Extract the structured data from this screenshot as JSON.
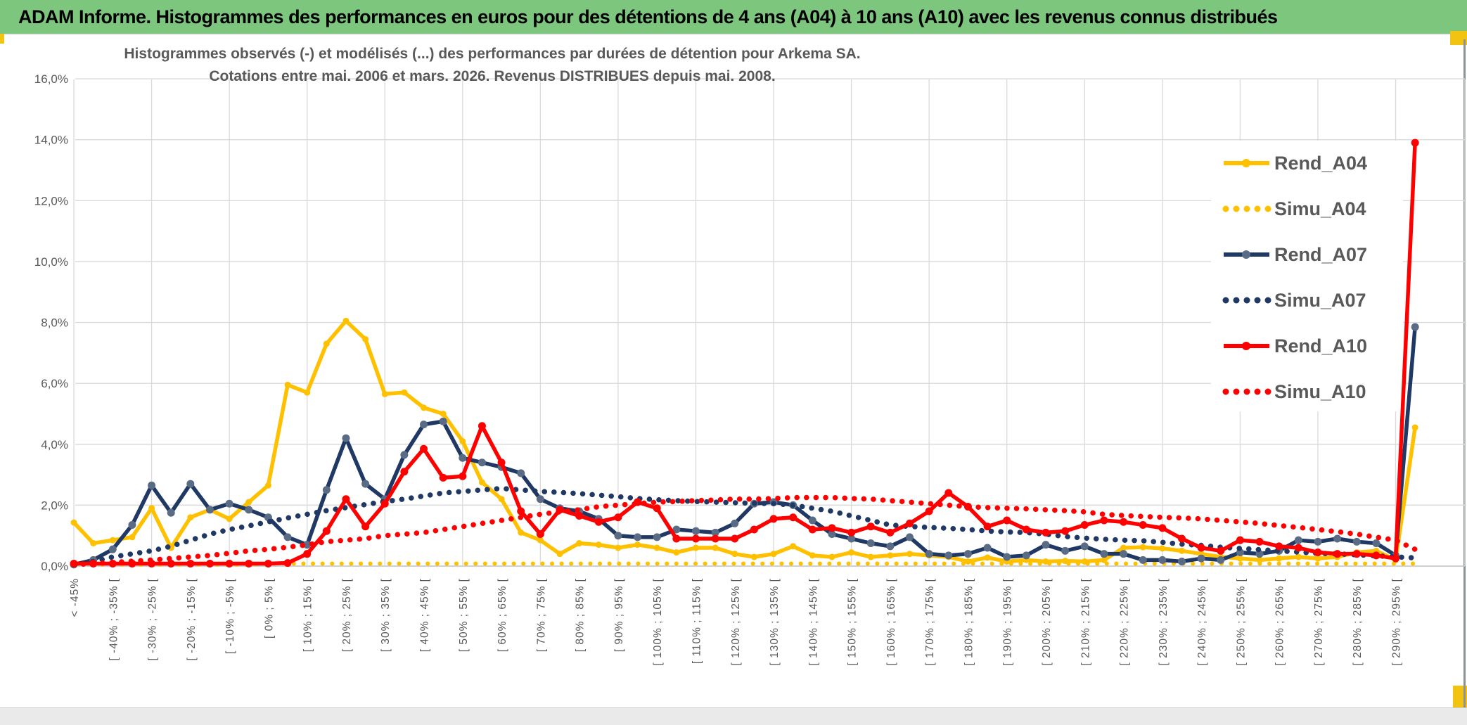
{
  "banner": {
    "title": "ADAM Informe. Histogrammes des performances en euros pour des détentions de 4 ans (A04) à 10 ans (A10) avec les revenus connus distribués"
  },
  "colors": {
    "banner_green": "#7cc67e",
    "accent_yellow": "#f2c411",
    "text_gray": "#595959",
    "gridline": "#dadada",
    "axis_line": "#c0c0c0",
    "series_yellow": "#ffc000",
    "series_navy": "#1f3864",
    "navy_marker": "#5a6b85",
    "series_red": "#ff0000",
    "window_border": "#8c9196",
    "bottom_strip": "#eaeaea"
  },
  "chart_data": {
    "type": "line",
    "title_line1": "Histogrammes observés (-) et modélisés (...) des performances par durées de détention pour Arkema SA.",
    "title_line2": "Cotations entre mai. 2006 et mars. 2026. Revenus DISTRIBUES depuis mai. 2008.",
    "ylim": [
      0,
      16
    ],
    "ytick_step": 2,
    "ytick_labels": [
      "0,0%",
      "2,0%",
      "4,0%",
      "6,0%",
      "8,0%",
      "10,0%",
      "12,0%",
      "14,0%",
      "16,0%"
    ],
    "grid": true,
    "legend_position": "right-top",
    "categories": [
      "< -45%",
      "",
      "[ -40% ; -35% [",
      "",
      "[ -30% ; -25% [",
      "",
      "[ -20% ; -15% [",
      "",
      "[ -10% ; -5% [",
      "",
      "[ 0% ; 5% [",
      "",
      "[ 10% ; 15% [",
      "",
      "[ 20% ; 25% [",
      "",
      "[ 30% ; 35% [",
      "",
      "[ 40% ; 45% [",
      "",
      "[ 50% ; 55% [",
      "",
      "[ 60% ; 65% [",
      "",
      "[ 70% ; 75% [",
      "",
      "[ 80% ; 85% [",
      "",
      "[ 90% ; 95% [",
      "",
      "[ 100% ; 105% [",
      "",
      "[ 110% ; 115% [",
      "",
      "[ 120% ; 125% [",
      "",
      "[ 130% ; 135% [",
      "",
      "[ 140% ; 145% [",
      "",
      "[ 150% ; 155% [",
      "",
      "[ 160% ; 165% [",
      "",
      "[ 170% ; 175% [",
      "",
      "[ 180% ; 185% [",
      "",
      "[ 190% ; 195% [",
      "",
      "[ 200% ; 205% [",
      "",
      "[ 210% ; 215% [",
      "",
      "[ 220% ; 225% [",
      "",
      "[ 230% ; 235% [",
      "",
      "[ 240% ; 245% [",
      "",
      "[ 250% ; 255% [",
      "",
      "[ 260% ; 265% [",
      "",
      "[ 270% ; 275% [",
      "",
      "[ 280% ; 285% [",
      "",
      "[ 290% ; 295% [",
      ""
    ],
    "series": [
      {
        "name": "Rend_A04",
        "style": "solid",
        "color": "#ffc000",
        "marker_color": "#ffc000",
        "values": [
          1.43,
          0.75,
          0.85,
          0.95,
          1.9,
          0.6,
          1.6,
          1.85,
          1.55,
          2.1,
          2.65,
          5.95,
          5.7,
          7.3,
          8.05,
          7.45,
          5.65,
          5.7,
          5.2,
          5.0,
          4.1,
          2.75,
          2.2,
          1.1,
          0.85,
          0.4,
          0.75,
          0.7,
          0.6,
          0.7,
          0.6,
          0.45,
          0.6,
          0.6,
          0.4,
          0.3,
          0.4,
          0.65,
          0.35,
          0.3,
          0.45,
          0.3,
          0.35,
          0.4,
          0.35,
          0.3,
          0.15,
          0.28,
          0.15,
          0.2,
          0.15,
          0.17,
          0.15,
          0.2,
          0.6,
          0.62,
          0.58,
          0.5,
          0.4,
          0.3,
          0.25,
          0.2,
          0.25,
          0.3,
          0.25,
          0.3,
          0.45,
          0.5,
          0.2,
          4.55
        ]
      },
      {
        "name": "Simu_A04",
        "style": "dotted",
        "color": "#ffc000",
        "values": [
          0.05,
          0.05,
          0.05,
          0.05,
          0.05,
          0.05,
          0.05,
          0.05,
          0.05,
          0.05,
          0.08,
          0.08,
          0.08,
          0.08,
          0.08,
          0.08,
          0.08,
          0.08,
          0.08,
          0.08,
          0.08,
          0.08,
          0.08,
          0.08,
          0.08,
          0.08,
          0.08,
          0.08,
          0.08,
          0.08,
          0.08,
          0.08,
          0.08,
          0.08,
          0.08,
          0.08,
          0.08,
          0.08,
          0.08,
          0.08,
          0.08,
          0.08,
          0.08,
          0.08,
          0.08,
          0.08,
          0.08,
          0.08,
          0.08,
          0.08,
          0.08,
          0.08,
          0.08,
          0.08,
          0.08,
          0.08,
          0.08,
          0.08,
          0.08,
          0.08,
          0.08,
          0.08,
          0.08,
          0.08,
          0.08,
          0.08,
          0.08,
          0.08,
          0.08,
          0.08
        ]
      },
      {
        "name": "Rend_A07",
        "style": "solid",
        "color": "#1f3864",
        "marker_color": "#5a6b85",
        "values": [
          0.05,
          0.2,
          0.55,
          1.35,
          2.65,
          1.75,
          2.7,
          1.85,
          2.05,
          1.85,
          1.6,
          0.95,
          0.7,
          2.5,
          4.2,
          2.7,
          2.2,
          3.65,
          4.65,
          4.75,
          3.55,
          3.4,
          3.25,
          3.05,
          2.2,
          1.9,
          1.8,
          1.55,
          1.0,
          0.95,
          0.95,
          1.2,
          1.15,
          1.1,
          1.4,
          2.05,
          2.1,
          2.0,
          1.5,
          1.05,
          0.9,
          0.75,
          0.65,
          0.95,
          0.4,
          0.35,
          0.4,
          0.6,
          0.3,
          0.35,
          0.7,
          0.5,
          0.65,
          0.4,
          0.4,
          0.2,
          0.2,
          0.15,
          0.25,
          0.2,
          0.45,
          0.4,
          0.5,
          0.85,
          0.8,
          0.9,
          0.8,
          0.75,
          0.35,
          7.85
        ]
      },
      {
        "name": "Simu_A07",
        "style": "dotted",
        "color": "#1f3864",
        "values": [
          0.05,
          0.15,
          0.3,
          0.4,
          0.5,
          0.65,
          0.85,
          1.05,
          1.2,
          1.32,
          1.45,
          1.58,
          1.7,
          1.82,
          1.92,
          2.02,
          2.12,
          2.2,
          2.3,
          2.4,
          2.45,
          2.5,
          2.55,
          2.5,
          2.45,
          2.42,
          2.38,
          2.33,
          2.28,
          2.22,
          2.18,
          2.15,
          2.12,
          2.1,
          2.08,
          2.06,
          2.05,
          2.0,
          1.9,
          1.8,
          1.65,
          1.5,
          1.35,
          1.3,
          1.27,
          1.24,
          1.2,
          1.15,
          1.12,
          1.1,
          1.05,
          0.97,
          0.92,
          0.88,
          0.85,
          0.83,
          0.78,
          0.72,
          0.68,
          0.62,
          0.58,
          0.54,
          0.5,
          0.46,
          0.42,
          0.4,
          0.37,
          0.34,
          0.3,
          0.27
        ]
      },
      {
        "name": "Rend_A10",
        "style": "solid",
        "color": "#ff0000",
        "marker_color": "#ff0000",
        "values": [
          0.08,
          0.08,
          0.08,
          0.08,
          0.08,
          0.08,
          0.08,
          0.08,
          0.08,
          0.08,
          0.08,
          0.1,
          0.4,
          1.15,
          2.2,
          1.3,
          2.05,
          3.1,
          3.85,
          2.9,
          2.95,
          4.6,
          3.4,
          1.8,
          1.05,
          1.85,
          1.65,
          1.45,
          1.6,
          2.1,
          1.9,
          0.9,
          0.9,
          0.9,
          0.9,
          1.2,
          1.55,
          1.6,
          1.2,
          1.25,
          1.1,
          1.3,
          1.1,
          1.4,
          1.8,
          2.4,
          1.95,
          1.3,
          1.5,
          1.2,
          1.1,
          1.15,
          1.35,
          1.5,
          1.45,
          1.35,
          1.25,
          0.9,
          0.6,
          0.5,
          0.85,
          0.8,
          0.65,
          0.6,
          0.45,
          0.4,
          0.4,
          0.35,
          0.25,
          13.9
        ]
      },
      {
        "name": "Simu_A10",
        "style": "dotted",
        "color": "#ff0000",
        "values": [
          0.05,
          0.08,
          0.12,
          0.16,
          0.2,
          0.25,
          0.3,
          0.35,
          0.42,
          0.5,
          0.55,
          0.62,
          0.7,
          0.8,
          0.85,
          0.9,
          1.0,
          1.05,
          1.1,
          1.2,
          1.3,
          1.4,
          1.5,
          1.6,
          1.7,
          1.78,
          1.85,
          1.95,
          2.0,
          2.05,
          2.1,
          2.12,
          2.15,
          2.17,
          2.2,
          2.2,
          2.22,
          2.25,
          2.25,
          2.25,
          2.22,
          2.2,
          2.15,
          2.1,
          2.05,
          2.0,
          1.95,
          1.92,
          1.9,
          1.88,
          1.85,
          1.82,
          1.78,
          1.7,
          1.66,
          1.63,
          1.6,
          1.58,
          1.55,
          1.5,
          1.45,
          1.4,
          1.33,
          1.27,
          1.2,
          1.13,
          1.05,
          0.95,
          0.85,
          0.55
        ]
      }
    ]
  }
}
